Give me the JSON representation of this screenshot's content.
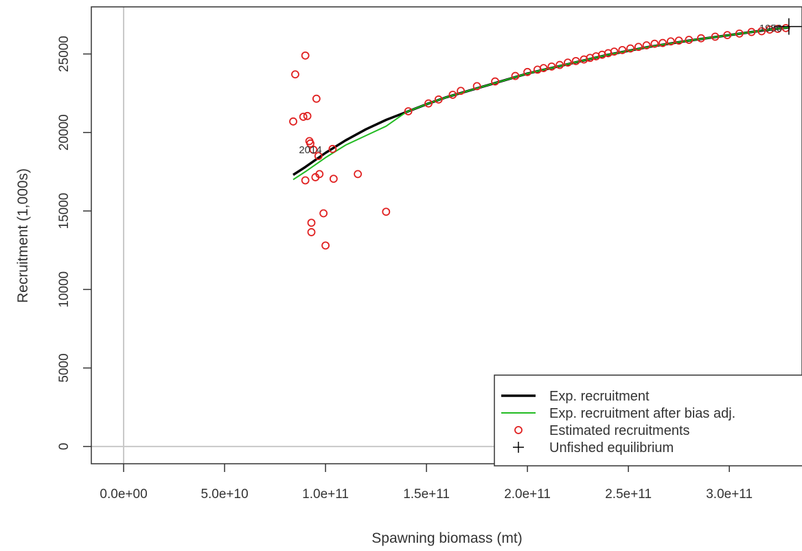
{
  "chart_data": {
    "type": "scatter",
    "xlabel": "Spawning biomass (mt)",
    "ylabel": "Recruitment (1,000s)",
    "xlim": [
      -16000000000.0,
      336000000000.0
    ],
    "ylim": [
      -1100,
      28000
    ],
    "x_ticks": [
      {
        "value": 0,
        "label": "0.0e+00"
      },
      {
        "value": 50000000000.0,
        "label": "5.0e+10"
      },
      {
        "value": 100000000000.0,
        "label": "1.0e+11"
      },
      {
        "value": 150000000000.0,
        "label": "1.5e+11"
      },
      {
        "value": 200000000000.0,
        "label": "2.0e+11"
      },
      {
        "value": 250000000000.0,
        "label": "2.5e+11"
      },
      {
        "value": 300000000000.0,
        "label": "3.0e+11"
      }
    ],
    "y_ticks": [
      {
        "value": 0,
        "label": "0"
      },
      {
        "value": 5000,
        "label": "5000"
      },
      {
        "value": 10000,
        "label": "10000"
      },
      {
        "value": 15000,
        "label": "15000"
      },
      {
        "value": 20000,
        "label": "20000"
      },
      {
        "value": 25000,
        "label": "25000"
      }
    ],
    "reference_lines": {
      "x": 0,
      "y": 0,
      "color": "#c8c8c8"
    },
    "series": [
      {
        "name": "Exp. recruitment",
        "kind": "line",
        "color": "#000000",
        "x": [
          84000000000.0,
          90000000000.0,
          100000000000.0,
          110000000000.0,
          120000000000.0,
          130000000000.0,
          140000000000.0,
          150000000000.0,
          160000000000.0,
          180000000000.0,
          200000000000.0,
          220000000000.0,
          240000000000.0,
          260000000000.0,
          280000000000.0,
          300000000000.0,
          310000000000.0,
          320000000000.0,
          330000000000.0
        ],
        "y": [
          17300,
          17800,
          18700,
          19500,
          20200,
          20800,
          21300,
          21800,
          22250,
          23000,
          23750,
          24350,
          24950,
          25450,
          25850,
          26200,
          26380,
          26550,
          26700
        ]
      },
      {
        "name": "Exp. recruitment after bias adj.",
        "kind": "line",
        "color": "#22bb22",
        "x": [
          84000000000.0,
          90000000000.0,
          100000000000.0,
          110000000000.0,
          120000000000.0,
          130000000000.0,
          140000000000.0,
          150000000000.0,
          160000000000.0,
          180000000000.0,
          200000000000.0,
          220000000000.0,
          240000000000.0,
          260000000000.0,
          280000000000.0,
          300000000000.0,
          310000000000.0,
          320000000000.0,
          330000000000.0
        ],
        "y": [
          17000,
          17500,
          18400,
          19200,
          19800,
          20400,
          21300,
          21800,
          22250,
          23000,
          23750,
          24350,
          24950,
          25450,
          25850,
          26200,
          26380,
          26550,
          26700
        ]
      },
      {
        "name": "Estimated recruitments",
        "kind": "points",
        "color": "#e02020",
        "x": [
          84000000000.0,
          85000000000.0,
          89000000000.0,
          90000000000.0,
          91000000000.0,
          92000000000.0,
          92500000000.0,
          93000000000.0,
          94000000000.0,
          95000000000.0,
          95500000000.0,
          96500000000.0,
          97000000000.0,
          99000000000.0,
          100000000000.0,
          103500000000.0,
          104000000000.0,
          116000000000.0,
          130000000000.0,
          90000000000.0,
          93000000000.0,
          141000000000.0,
          151000000000.0,
          156000000000.0,
          163000000000.0,
          167000000000.0,
          175000000000.0,
          184000000000.0,
          194000000000.0,
          200000000000.0,
          205000000000.0,
          208000000000.0,
          212000000000.0,
          216000000000.0,
          220000000000.0,
          224000000000.0,
          228000000000.0,
          231000000000.0,
          234000000000.0,
          237000000000.0,
          240000000000.0,
          243000000000.0,
          247000000000.0,
          251000000000.0,
          255000000000.0,
          259000000000.0,
          263000000000.0,
          267000000000.0,
          271000000000.0,
          275000000000.0,
          280000000000.0,
          286000000000.0,
          293000000000.0,
          299000000000.0,
          305000000000.0,
          311000000000.0,
          316000000000.0,
          320000000000.0,
          324000000000.0,
          328000000000.0
        ],
        "y": [
          20700,
          23700,
          21000,
          24900,
          21050,
          19450,
          19300,
          14250,
          18900,
          17150,
          22150,
          18500,
          17350,
          14850,
          12800,
          18950,
          17050,
          17350,
          14950,
          16950,
          13650,
          21350,
          21850,
          22100,
          22400,
          22650,
          22950,
          23250,
          23600,
          23850,
          24000,
          24100,
          24200,
          24300,
          24450,
          24550,
          24650,
          24750,
          24850,
          24950,
          25050,
          25150,
          25250,
          25350,
          25450,
          25550,
          25650,
          25700,
          25800,
          25850,
          25900,
          26000,
          26100,
          26200,
          26300,
          26400,
          26450,
          26550,
          26600,
          26650
        ]
      },
      {
        "name": "Unfished equilibrium",
        "kind": "cross",
        "color": "#000000",
        "x": [
          329500000000.0
        ],
        "y": [
          26750
        ]
      }
    ],
    "annotations": [
      {
        "text": "2014",
        "x": 92500000000.0,
        "y": 18900
      },
      {
        "text": "1950",
        "x": 320500000000.0,
        "y": 26650
      }
    ],
    "legend": {
      "placement": "bottom-right",
      "entries": [
        {
          "label": "Exp. recruitment",
          "symbol": "thick-line",
          "color": "#000000"
        },
        {
          "label": "Exp. recruitment after bias adj.",
          "symbol": "thin-line",
          "color": "#22bb22"
        },
        {
          "label": "Estimated recruitments",
          "symbol": "circle",
          "color": "#e02020"
        },
        {
          "label": "Unfished equilibrium",
          "symbol": "cross",
          "color": "#000000"
        }
      ]
    }
  }
}
